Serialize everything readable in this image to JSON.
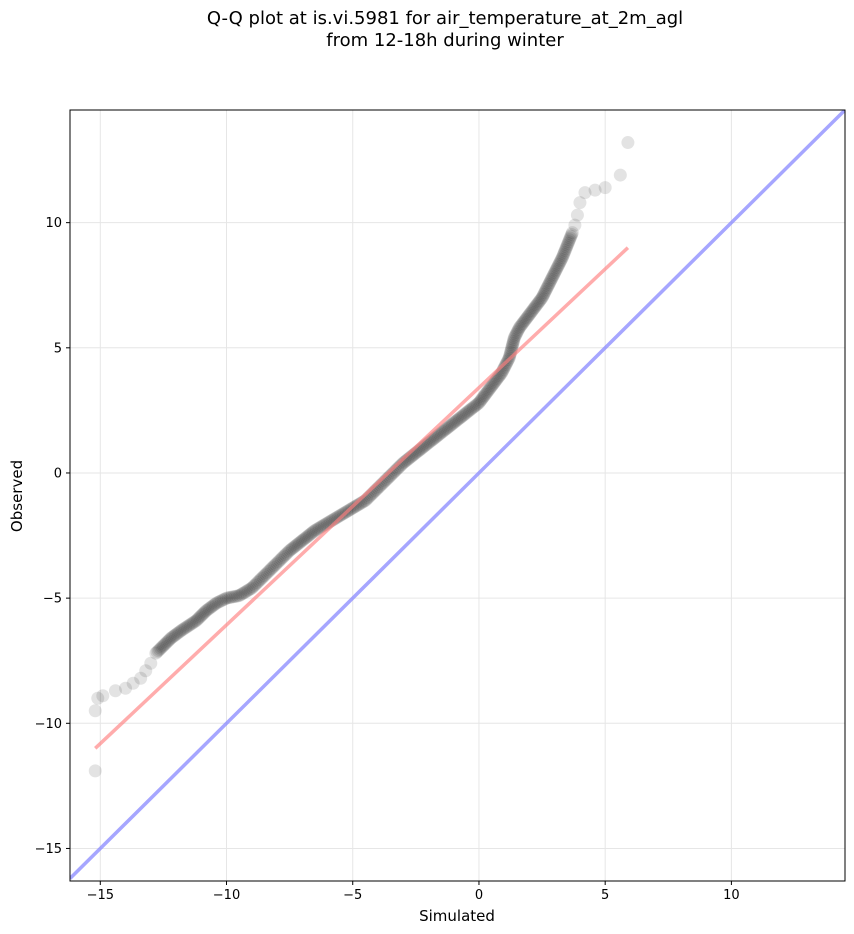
{
  "chart_data": {
    "type": "scatter",
    "title_line1": "Q-Q plot at is.vi.5981 for air_temperature_at_2m_agl",
    "title_line2": "from 12-18h during winter",
    "xlabel": "Simulated",
    "ylabel": "Observed",
    "xlim": [
      -16.2,
      14.5
    ],
    "ylim": [
      -16.3,
      14.5
    ],
    "xticks": [
      -15,
      -10,
      -5,
      0,
      5,
      10
    ],
    "yticks": [
      -15,
      -10,
      -5,
      0,
      5,
      10
    ],
    "xtick_labels": [
      "−15",
      "−10",
      "−5",
      "0",
      "5",
      "10"
    ],
    "ytick_labels": [
      "−15",
      "−10",
      "−5",
      "0",
      "5",
      "10"
    ],
    "grid": true,
    "quantile_points": {
      "color": "#000000",
      "x": [
        -15.2,
        -15.2,
        -15.1,
        -14.9,
        -14.4,
        -14.0,
        -13.7,
        -13.4,
        -13.2,
        -13.0,
        -12.8,
        -12.6,
        -12.2,
        -11.8,
        -11.2,
        -10.8,
        -10.4,
        -10.0,
        -9.5,
        -9.0,
        -8.5,
        -8.0,
        -7.5,
        -7.0,
        -6.5,
        -6.0,
        -5.5,
        -5.0,
        -4.5,
        -4.0,
        -3.5,
        -3.0,
        -2.5,
        -2.0,
        -1.5,
        -1.0,
        -0.5,
        0.0,
        0.3,
        0.6,
        0.9,
        1.2,
        1.4,
        1.6,
        1.9,
        2.2,
        2.5,
        2.8,
        3.1,
        3.3,
        3.5,
        3.7,
        3.8,
        3.9,
        4.0,
        4.2,
        4.6,
        5.0,
        5.6,
        5.9
      ],
      "y": [
        -11.9,
        -9.5,
        -9.0,
        -8.9,
        -8.7,
        -8.6,
        -8.4,
        -8.2,
        -7.9,
        -7.6,
        -7.2,
        -7.0,
        -6.6,
        -6.3,
        -5.9,
        -5.5,
        -5.2,
        -5.0,
        -4.9,
        -4.6,
        -4.1,
        -3.6,
        -3.1,
        -2.7,
        -2.3,
        -2.0,
        -1.7,
        -1.4,
        -1.1,
        -0.6,
        -0.1,
        0.4,
        0.8,
        1.2,
        1.6,
        2.0,
        2.4,
        2.8,
        3.2,
        3.6,
        4.0,
        4.6,
        5.4,
        5.8,
        6.2,
        6.6,
        7.0,
        7.6,
        8.2,
        8.6,
        9.1,
        9.6,
        9.9,
        10.3,
        10.8,
        11.2,
        11.3,
        11.4,
        11.9,
        13.2
      ]
    },
    "fit_line": {
      "color": "#ff8080",
      "x": [
        -15.2,
        5.9
      ],
      "y": [
        -11.0,
        9.0
      ]
    },
    "identity_line": {
      "color": "#8888ff",
      "x": [
        -16.2,
        14.5
      ],
      "y": [
        -16.2,
        14.5
      ]
    }
  }
}
